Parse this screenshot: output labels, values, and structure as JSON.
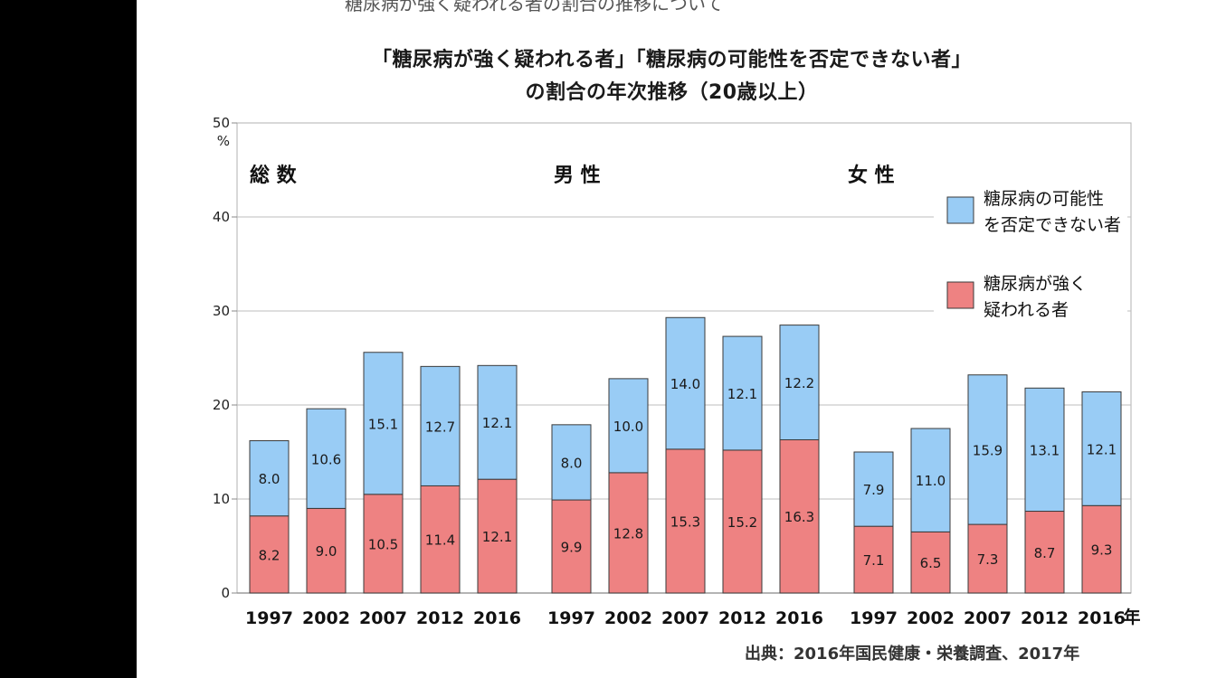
{
  "cut_text": "糖尿病が強く疑われる者の割合の推移について",
  "chart_data": {
    "type": "bar",
    "stacked": true,
    "title_line1": "「糖尿病が強く疑われる者」「糖尿病の可能性を否定できない者」",
    "title_line2": "の割合の年次推移（20歳以上）",
    "ylabel": "%",
    "ylim": [
      0,
      50
    ],
    "yticks": [
      0,
      10,
      20,
      30,
      40,
      50
    ],
    "grid": true,
    "year_unit": "年",
    "legend_position": "right",
    "series_names": [
      "糖尿病の可能性を否定できない者",
      "糖尿病が強く疑われる者"
    ],
    "legend": [
      {
        "line1": "糖尿病の可能性",
        "line2": "を否定できない者",
        "color": "#99ccf5"
      },
      {
        "line1": "糖尿病が強く",
        "line2": "疑われる者",
        "color": "#ee8282"
      }
    ],
    "colors": {
      "possible": "#99ccf5",
      "strong": "#ee8282"
    },
    "groups": [
      {
        "name": "総 数",
        "categories": [
          "1997",
          "2002",
          "2007",
          "2012",
          "2016"
        ],
        "strong": [
          8.2,
          9.0,
          10.5,
          11.4,
          12.1
        ],
        "possible": [
          8.0,
          10.6,
          15.1,
          12.7,
          12.1
        ]
      },
      {
        "name": "男 性",
        "categories": [
          "1997",
          "2002",
          "2007",
          "2012",
          "2016"
        ],
        "strong": [
          9.9,
          12.8,
          15.3,
          15.2,
          16.3
        ],
        "possible": [
          8.0,
          10.0,
          14.0,
          12.1,
          12.2
        ]
      },
      {
        "name": "女 性",
        "categories": [
          "1997",
          "2002",
          "2007",
          "2012",
          "2016"
        ],
        "strong": [
          7.1,
          6.5,
          7.3,
          8.7,
          9.3
        ],
        "possible": [
          7.9,
          11.0,
          15.9,
          13.1,
          12.1
        ]
      }
    ]
  },
  "source": "出典：2016年国民健康・栄養調査、2017年"
}
